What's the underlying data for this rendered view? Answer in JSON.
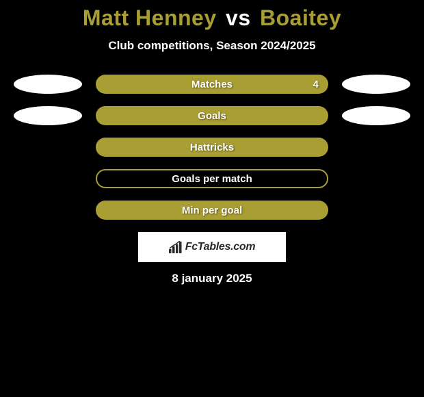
{
  "title": {
    "player1": "Matt Henney",
    "vs": "vs",
    "player2": "Boaitey",
    "player1_color": "#a99e33",
    "player2_color": "#a99e33",
    "vs_color": "#ffffff",
    "fontsize": 32
  },
  "subtitle": {
    "text": "Club competitions, Season 2024/2025",
    "color": "#ffffff",
    "fontsize": 17
  },
  "stats": [
    {
      "label": "Matches",
      "value": "4",
      "filled": true,
      "show_left_ellipse": true,
      "show_right_ellipse": true,
      "left_ellipse_color": "#ffffff",
      "right_ellipse_color": "#ffffff"
    },
    {
      "label": "Goals",
      "value": "",
      "filled": true,
      "show_left_ellipse": true,
      "show_right_ellipse": true,
      "left_ellipse_color": "#ffffff",
      "right_ellipse_color": "#ffffff"
    },
    {
      "label": "Hattricks",
      "value": "",
      "filled": true,
      "show_left_ellipse": false,
      "show_right_ellipse": false
    },
    {
      "label": "Goals per match",
      "value": "",
      "filled": false,
      "show_left_ellipse": false,
      "show_right_ellipse": false
    },
    {
      "label": "Min per goal",
      "value": "",
      "filled": true,
      "show_left_ellipse": false,
      "show_right_ellipse": false
    }
  ],
  "style": {
    "background_color": "#000000",
    "pill_fill_color": "#a99e33",
    "pill_border_color": "#a99e33",
    "pill_width": 340,
    "pill_height": 28,
    "ellipse_width": 100,
    "ellipse_height": 28,
    "text_color": "#ffffff",
    "label_fontsize": 15,
    "label_fontweight": 700
  },
  "logo": {
    "brand": "FcTables.com",
    "box_background": "#ffffff",
    "text_color": "#2a2a2a",
    "icon_color": "#2a2a2a"
  },
  "date": {
    "text": "8 january 2025",
    "color": "#ffffff",
    "fontsize": 17
  }
}
